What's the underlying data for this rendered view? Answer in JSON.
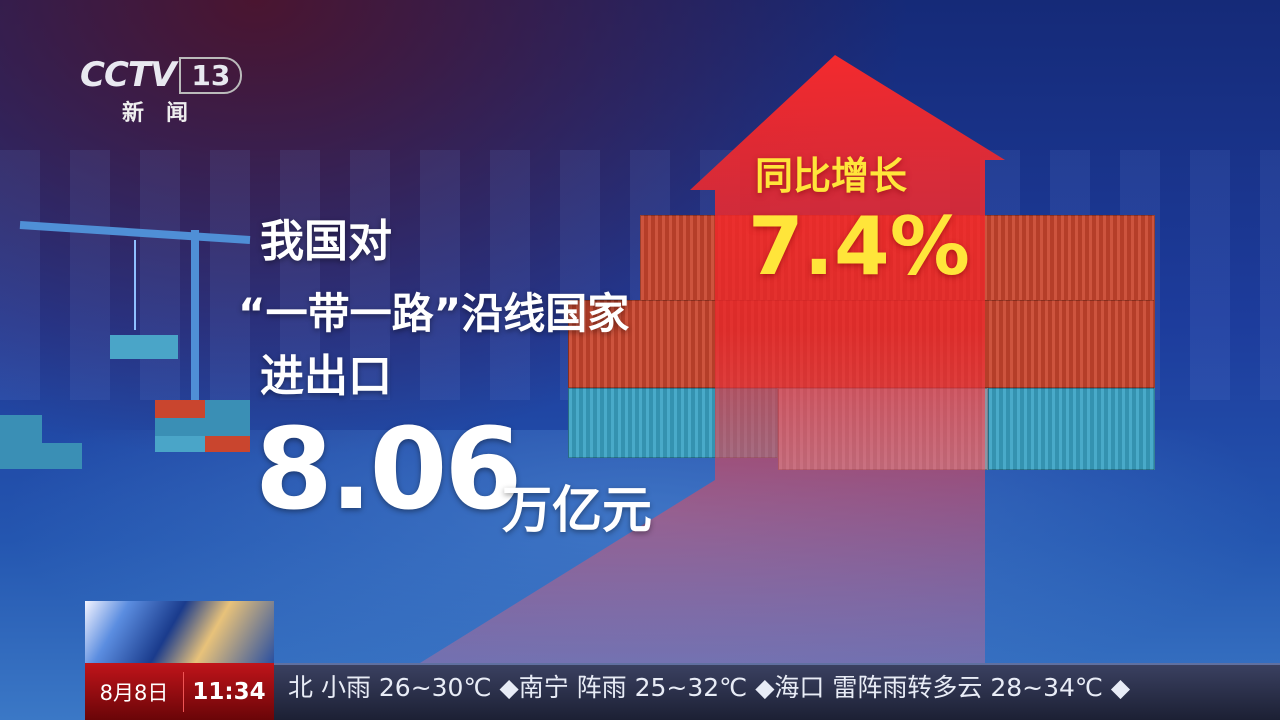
{
  "logo": {
    "brand": "CCTV",
    "channel": "13",
    "subtitle": "新闻"
  },
  "headline": {
    "line1": "我国对",
    "line2": "“一带一路”沿线国家",
    "line3": "进出口",
    "value": "8.06",
    "unit": "万亿元"
  },
  "growth": {
    "label": "同比增长",
    "value": "7.4%"
  },
  "colors": {
    "arrow": "#e8262a",
    "highlight": "#ffe53a",
    "ticker_bg": "#1c2034",
    "date_bg": "#c0141a"
  },
  "ticker": {
    "date": "8月8日",
    "time": "11:34",
    "text": "北  小雨  26~30℃  ◆南宁  阵雨  25~32℃  ◆海口  雷阵雨转多云  28~34℃  ◆"
  }
}
